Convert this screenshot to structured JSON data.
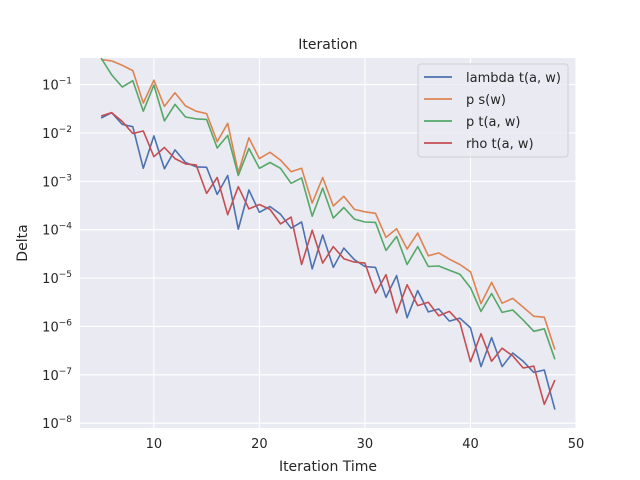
{
  "chart_data": {
    "type": "line",
    "title": "Iteration",
    "xlabel": "Iteration Time",
    "ylabel": "Delta",
    "xlim": [
      3,
      50
    ],
    "ylim_log10": [
      -8.1,
      -0.45
    ],
    "yscale": "log",
    "x_ticks": [
      10,
      20,
      30,
      40,
      50
    ],
    "y_ticks": [
      {
        "exp": -1,
        "base": "10",
        "sup": "−1"
      },
      {
        "exp": -2,
        "base": "10",
        "sup": "−2"
      },
      {
        "exp": -3,
        "base": "10",
        "sup": "−3"
      },
      {
        "exp": -4,
        "base": "10",
        "sup": "−4"
      },
      {
        "exp": -5,
        "base": "10",
        "sup": "−5"
      },
      {
        "exp": -6,
        "base": "10",
        "sup": "−6"
      },
      {
        "exp": -7,
        "base": "10",
        "sup": "−7"
      },
      {
        "exp": -8,
        "base": "10",
        "sup": "−8"
      }
    ],
    "grid": true,
    "legend_position": "top-right",
    "x": [
      5,
      6,
      7,
      8,
      9,
      10,
      11,
      12,
      13,
      14,
      15,
      16,
      17,
      18,
      19,
      20,
      21,
      22,
      23,
      24,
      25,
      26,
      27,
      28,
      29,
      30,
      31,
      32,
      33,
      34,
      35,
      36,
      37,
      38,
      39,
      40,
      41,
      42,
      43,
      44,
      45,
      46,
      47,
      48
    ],
    "series": [
      {
        "name": "lambda t(a, w)",
        "color": "#4c72b0",
        "log10_values": [
          -1.69,
          -1.58,
          -1.82,
          -1.87,
          -2.73,
          -2.06,
          -2.74,
          -2.35,
          -2.61,
          -2.7,
          -2.71,
          -3.27,
          -2.88,
          -3.99,
          -3.18,
          -3.64,
          -3.52,
          -3.68,
          -3.97,
          -3.84,
          -4.81,
          -4.11,
          -4.78,
          -4.38,
          -4.62,
          -4.76,
          -4.78,
          -5.4,
          -4.95,
          -5.82,
          -5.26,
          -5.7,
          -5.64,
          -5.89,
          -5.83,
          -6.03,
          -6.83,
          -6.23,
          -6.83,
          -6.55,
          -6.72,
          -6.95,
          -6.9,
          -7.72
        ]
      },
      {
        "name": "p s(w)",
        "color": "#dd8452",
        "log10_values": [
          -0.48,
          -0.51,
          -0.6,
          -0.71,
          -1.38,
          -0.91,
          -1.45,
          -1.17,
          -1.44,
          -1.55,
          -1.6,
          -2.18,
          -1.8,
          -2.82,
          -2.1,
          -2.53,
          -2.4,
          -2.56,
          -2.8,
          -2.73,
          -3.45,
          -2.92,
          -3.51,
          -3.31,
          -3.58,
          -3.63,
          -3.66,
          -4.16,
          -3.98,
          -4.4,
          -4.07,
          -4.54,
          -4.48,
          -4.61,
          -4.72,
          -4.87,
          -5.53,
          -5.09,
          -5.52,
          -5.42,
          -5.6,
          -5.79,
          -5.81,
          -6.48
        ]
      },
      {
        "name": "p t(a, w)",
        "color": "#55a868",
        "log10_values": [
          -0.45,
          -0.8,
          -1.05,
          -0.92,
          -1.55,
          -1.01,
          -1.75,
          -1.41,
          -1.67,
          -1.71,
          -1.72,
          -2.31,
          -2.05,
          -2.88,
          -2.32,
          -2.73,
          -2.61,
          -2.73,
          -3.04,
          -2.93,
          -3.72,
          -3.14,
          -3.76,
          -3.54,
          -3.78,
          -3.84,
          -3.85,
          -4.43,
          -4.14,
          -4.72,
          -4.35,
          -4.76,
          -4.75,
          -4.84,
          -4.92,
          -5.2,
          -5.69,
          -5.32,
          -5.71,
          -5.66,
          -5.87,
          -6.1,
          -6.05,
          -6.68
        ]
      },
      {
        "name": "rho t(a, w)",
        "color": "#c44e52",
        "log10_values": [
          -1.65,
          -1.58,
          -1.76,
          -2.01,
          -1.96,
          -2.49,
          -2.3,
          -2.53,
          -2.64,
          -2.66,
          -3.25,
          -2.92,
          -3.69,
          -3.11,
          -3.57,
          -3.48,
          -3.58,
          -3.88,
          -3.74,
          -4.72,
          -4.01,
          -4.69,
          -4.35,
          -4.6,
          -4.67,
          -4.69,
          -5.31,
          -4.93,
          -5.72,
          -5.14,
          -5.57,
          -5.5,
          -5.78,
          -5.69,
          -5.92,
          -6.73,
          -6.15,
          -6.72,
          -6.45,
          -6.61,
          -6.86,
          -6.82,
          -7.61,
          -7.11
        ]
      }
    ]
  }
}
